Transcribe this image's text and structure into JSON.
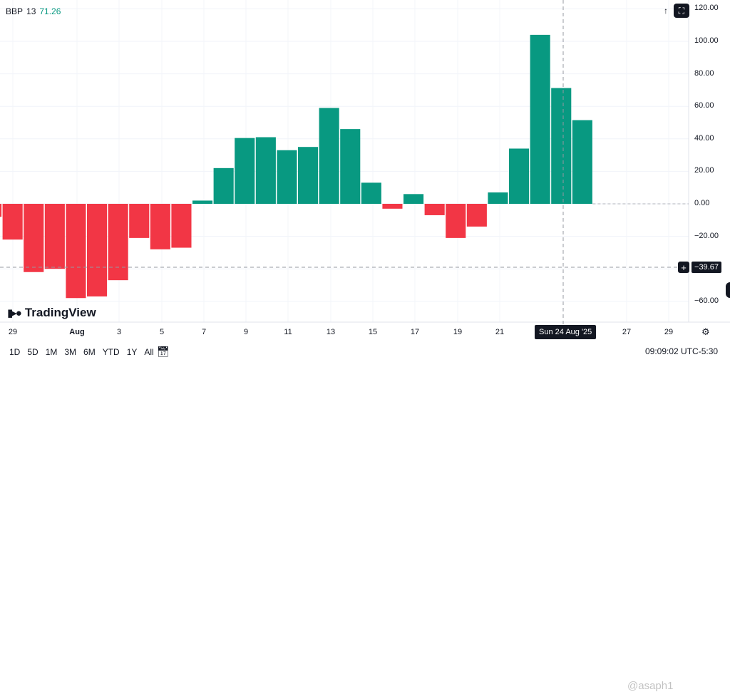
{
  "legend": {
    "name": "BBP",
    "length": "13",
    "value": "71.26"
  },
  "toolbar": {
    "scroll_icon": "arrow-up-icon",
    "fullscreen_icon": "fullscreen-icon"
  },
  "crosshair": {
    "price": "−39.67",
    "date": "Sun 24 Aug '25"
  },
  "logo": {
    "text": "TradingView"
  },
  "ranges": [
    "1D",
    "5D",
    "1M",
    "3M",
    "6M",
    "YTD",
    "1Y",
    "All"
  ],
  "time_readout": "09:09:02 UTC-5:30",
  "watermark": "@asaph1",
  "colors": {
    "positive": "#089981",
    "negative": "#f23645",
    "crosshair": "#9598a1"
  },
  "chart_data": {
    "type": "bar",
    "title": "BBP 13",
    "x_tick_labels": [
      "29",
      "Aug",
      "3",
      "5",
      "7",
      "9",
      "11",
      "13",
      "15",
      "17",
      "19",
      "21",
      "27",
      "29"
    ],
    "y_tick_labels": [
      "120.00",
      "100.00",
      "80.00",
      "60.00",
      "40.00",
      "20.00",
      "0.00",
      "−20.00",
      "−60.00"
    ],
    "ylim": [
      -70,
      122
    ],
    "values": [
      -8,
      -22,
      -42,
      -40,
      -58,
      -57,
      -47,
      -21,
      -28,
      -27,
      2,
      22,
      40.5,
      41,
      33,
      35,
      59,
      46,
      13,
      -3,
      6,
      -7,
      -21,
      -14,
      7,
      34,
      104,
      71.26,
      51.5
    ],
    "grid": true,
    "legend": "none"
  }
}
